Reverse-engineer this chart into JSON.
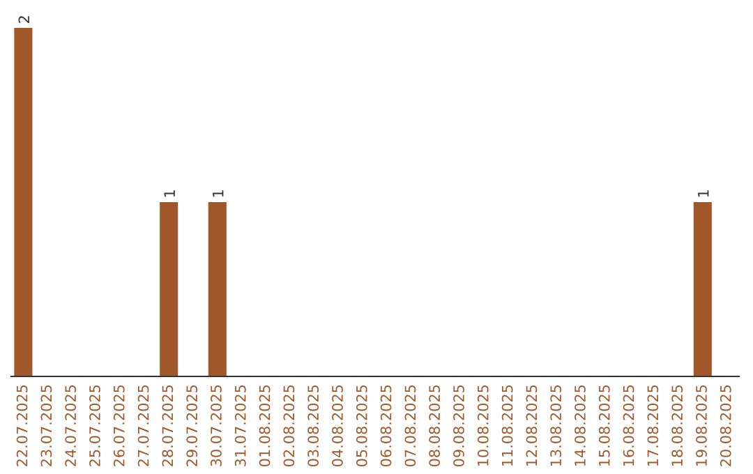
{
  "chart_data": {
    "type": "bar",
    "categories": [
      "22.07.2025",
      "23.07.2025",
      "24.07.2025",
      "25.07.2025",
      "26.07.2025",
      "27.07.2025",
      "28.07.2025",
      "29.07.2025",
      "30.07.2025",
      "31.07.2025",
      "01.08.2025",
      "02.08.2025",
      "03.08.2025",
      "04.08.2025",
      "05.08.2025",
      "06.08.2025",
      "07.08.2025",
      "08.08.2025",
      "09.08.2025",
      "10.08.2025",
      "11.08.2025",
      "12.08.2025",
      "13.08.2025",
      "14.08.2025",
      "15.08.2025",
      "16.08.2025",
      "17.08.2025",
      "18.08.2025",
      "19.08.2025",
      "20.08.2025"
    ],
    "values": [
      2,
      0,
      0,
      0,
      0,
      0,
      1,
      0,
      1,
      0,
      0,
      0,
      0,
      0,
      0,
      0,
      0,
      0,
      0,
      0,
      0,
      0,
      0,
      0,
      0,
      0,
      0,
      0,
      1,
      0
    ],
    "value_labels": [
      "2",
      null,
      null,
      null,
      null,
      null,
      "1",
      null,
      "1",
      null,
      null,
      null,
      null,
      null,
      null,
      null,
      null,
      null,
      null,
      null,
      null,
      null,
      null,
      null,
      null,
      null,
      null,
      null,
      "1",
      null
    ],
    "color": "#a0582b",
    "tick_labels": "x",
    "grid": false,
    "legend": false
  }
}
